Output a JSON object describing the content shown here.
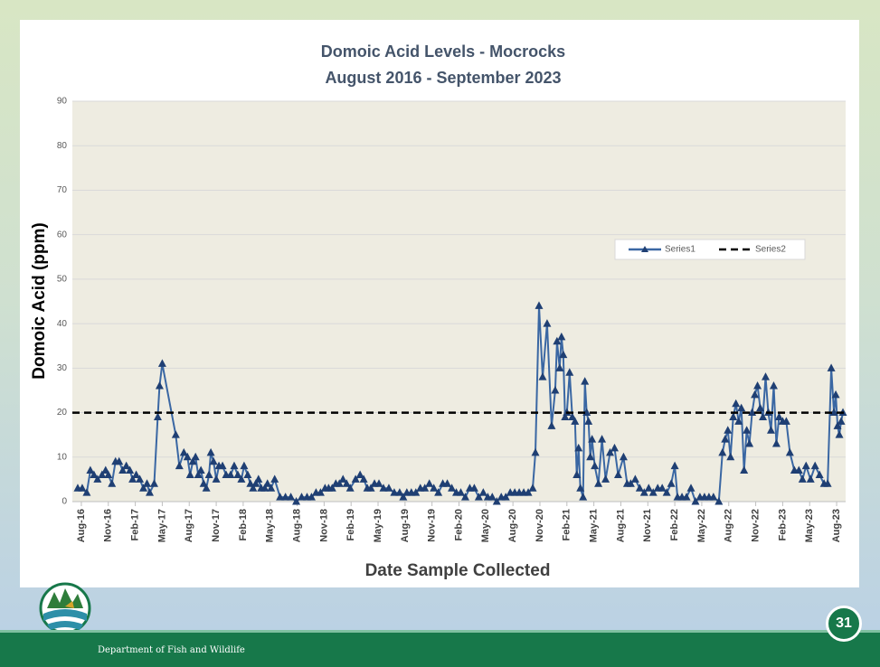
{
  "footer": {
    "department": "Department of Fish and Wildlife",
    "page_number": "31"
  },
  "chart_data": {
    "type": "line",
    "title": [
      "Domoic Acid Levels - Mocrocks",
      "August 2016 - September 2023"
    ],
    "y_label": "Domoic Acid (ppm)",
    "x_label": "Date Sample Collected",
    "xlim": [
      -1,
      85
    ],
    "ylim": [
      0,
      90
    ],
    "yticks": [
      0,
      10,
      20,
      30,
      40,
      50,
      60,
      70,
      80,
      90
    ],
    "xticks": [
      {
        "value": 0,
        "label": "Aug-16"
      },
      {
        "value": 3,
        "label": "Nov-16"
      },
      {
        "value": 6,
        "label": "Feb-17"
      },
      {
        "value": 9,
        "label": "May-17"
      },
      {
        "value": 12,
        "label": "Aug-17"
      },
      {
        "value": 15,
        "label": "Nov-17"
      },
      {
        "value": 18,
        "label": "Feb-18"
      },
      {
        "value": 21,
        "label": "May-18"
      },
      {
        "value": 24,
        "label": "Aug-18"
      },
      {
        "value": 27,
        "label": "Nov-18"
      },
      {
        "value": 30,
        "label": "Feb-19"
      },
      {
        "value": 33,
        "label": "May-19"
      },
      {
        "value": 36,
        "label": "Aug-19"
      },
      {
        "value": 39,
        "label": "Nov-19"
      },
      {
        "value": 42,
        "label": "Feb-20"
      },
      {
        "value": 45,
        "label": "May-20"
      },
      {
        "value": 48,
        "label": "Aug-20"
      },
      {
        "value": 51,
        "label": "Nov-20"
      },
      {
        "value": 54,
        "label": "Feb-21"
      },
      {
        "value": 57,
        "label": "May-21"
      },
      {
        "value": 60,
        "label": "Aug-21"
      },
      {
        "value": 63,
        "label": "Nov-21"
      },
      {
        "value": 66,
        "label": "Feb-22"
      },
      {
        "value": 69,
        "label": "May-22"
      },
      {
        "value": 72,
        "label": "Aug-22"
      },
      {
        "value": 75,
        "label": "Nov-22"
      },
      {
        "value": 78,
        "label": "Feb-23"
      },
      {
        "value": 81,
        "label": "May-23"
      },
      {
        "value": 84,
        "label": "Aug-23"
      }
    ],
    "grid": true,
    "legend": "upper right",
    "series": [
      {
        "name": "Series1",
        "color": "#3a67a3",
        "marker_color": "#1f3f73",
        "style": "solid",
        "marker": "triangle",
        "x": [
          -0.4,
          0.1,
          0.6,
          1,
          1.4,
          1.8,
          2.3,
          2.7,
          3,
          3.4,
          3.8,
          4.2,
          4.6,
          5,
          5.4,
          5.7,
          6.1,
          6.5,
          6.9,
          7.3,
          7.6,
          8.1,
          8.5,
          8.7,
          9,
          10.5,
          10.9,
          11.4,
          11.8,
          12.1,
          12.4,
          12.7,
          13,
          13.3,
          13.6,
          13.9,
          14.2,
          14.4,
          14.7,
          15,
          15.3,
          15.7,
          16.1,
          16.6,
          17,
          17.4,
          17.8,
          18.1,
          18.5,
          18.8,
          19.1,
          19.4,
          19.7,
          20,
          20.4,
          20.7,
          21.1,
          21.5,
          22.1,
          22.7,
          23.3,
          23.9,
          24.5,
          25.1,
          25.6,
          26.1,
          26.6,
          27.1,
          27.5,
          27.9,
          28.3,
          28.7,
          29.1,
          29.5,
          29.9,
          30.5,
          31,
          31.4,
          31.8,
          32.2,
          32.6,
          33.1,
          33.6,
          34.2,
          34.8,
          35.4,
          35.8,
          36.2,
          36.7,
          37.2,
          37.7,
          38.2,
          38.7,
          39.2,
          39.7,
          40.2,
          40.7,
          41.2,
          41.7,
          42.2,
          42.7,
          43.2,
          43.7,
          44.2,
          44.7,
          45.2,
          45.7,
          46.2,
          46.7,
          47.2,
          47.7,
          48.2,
          48.7,
          49.2,
          49.7,
          50.2,
          50.5,
          50.9,
          51.3,
          51.8,
          52.3,
          52.7,
          52.9,
          53.2,
          53.4,
          53.6,
          53.8,
          54,
          54.3,
          54.6,
          54.9,
          55.1,
          55.3,
          55.5,
          55.8,
          56,
          56.2,
          56.4,
          56.6,
          56.8,
          57.1,
          57.5,
          57.9,
          58.3,
          58.8,
          59.3,
          59.7,
          60.3,
          60.7,
          61.1,
          61.6,
          62.1,
          62.6,
          63.1,
          63.6,
          64.1,
          64.6,
          65.1,
          65.6,
          66,
          66.3,
          66.8,
          67.3,
          67.8,
          68.3,
          68.8,
          69.3,
          69.8,
          70.3,
          70.9,
          71.3,
          71.6,
          71.9,
          72.2,
          72.5,
          72.8,
          73.1,
          73.4,
          73.7,
          74,
          74.3,
          74.6,
          74.9,
          75.2,
          75.5,
          75.8,
          76.1,
          76.4,
          76.7,
          77,
          77.3,
          77.6,
          78,
          78.4,
          78.8,
          79.3,
          79.8,
          80.2,
          80.6,
          81.1,
          81.6,
          82.1,
          82.6,
          83,
          83.4,
          83.7,
          83.9,
          84.1,
          84.3,
          84.5,
          84.7
        ],
        "values": [
          3,
          3,
          2,
          7,
          6,
          5,
          6,
          7,
          6,
          4,
          9,
          9,
          7,
          8,
          7,
          5,
          6,
          5,
          3,
          4,
          2,
          4,
          19,
          26,
          31,
          15,
          8,
          11,
          10,
          6,
          9,
          10,
          6,
          7,
          4,
          3,
          6,
          11,
          9,
          5,
          8,
          8,
          6,
          6,
          8,
          6,
          5,
          8,
          6,
          4,
          3,
          4,
          5,
          3,
          3,
          4,
          3,
          5,
          1,
          1,
          1,
          0,
          1,
          1,
          1,
          2,
          2,
          3,
          3,
          3,
          4,
          4,
          5,
          4,
          3,
          5,
          6,
          5,
          3,
          3,
          4,
          4,
          3,
          3,
          2,
          2,
          1,
          2,
          2,
          2,
          3,
          3,
          4,
          3,
          2,
          4,
          4,
          3,
          2,
          2,
          1,
          3,
          3,
          1,
          2,
          1,
          1,
          0,
          1,
          1,
          2,
          2,
          2,
          2,
          2,
          3,
          11,
          44,
          28,
          40,
          17,
          25,
          36,
          30,
          37,
          33,
          19,
          20,
          29,
          19,
          18,
          6,
          12,
          3,
          1,
          27,
          20,
          18,
          10,
          14,
          8,
          4,
          14,
          5,
          11,
          12,
          6,
          10,
          4,
          4,
          5,
          3,
          2,
          3,
          2,
          3,
          3,
          2,
          4,
          8,
          1,
          1,
          1,
          3,
          0,
          1,
          1,
          1,
          1,
          0,
          11,
          14,
          16,
          10,
          19,
          22,
          18,
          21,
          7,
          16,
          13,
          20,
          24,
          26,
          21,
          19,
          28,
          20,
          16,
          26,
          13,
          19,
          18,
          18,
          11,
          7,
          7,
          5,
          8,
          5,
          8,
          6,
          4,
          4,
          30,
          20,
          24,
          17,
          15,
          18,
          20
        ]
      },
      {
        "name": "Series2",
        "color": "#000000",
        "style": "dashed",
        "marker": "none",
        "x": [
          -1,
          85
        ],
        "values": [
          20,
          20
        ]
      }
    ]
  }
}
